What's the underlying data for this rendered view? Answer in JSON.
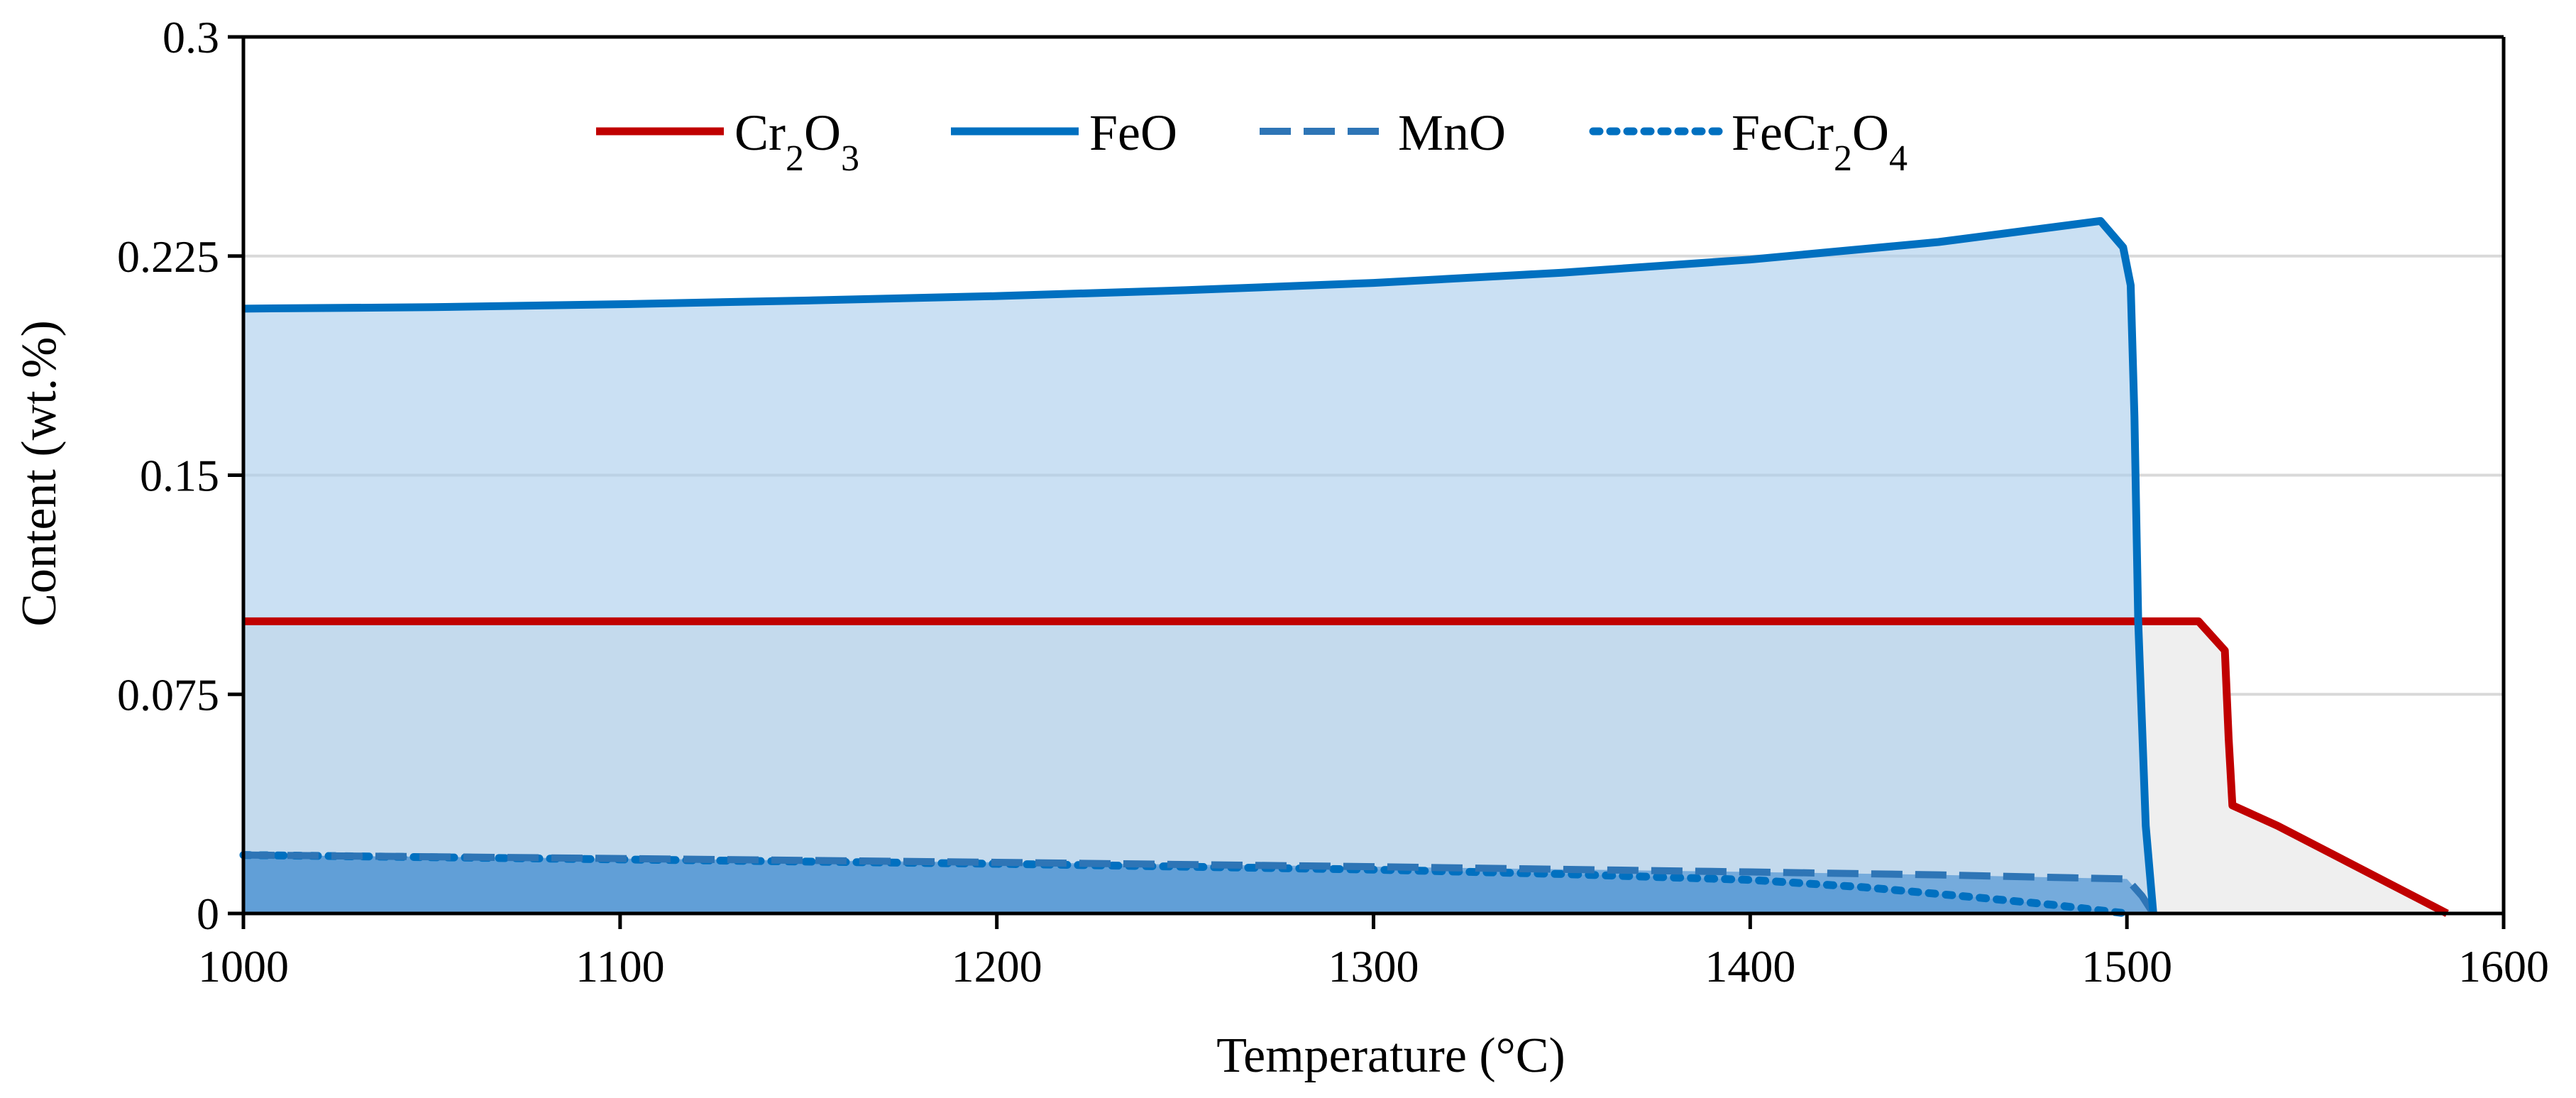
{
  "chart_data": {
    "type": "area",
    "title": "",
    "xlabel": "Temperature (°C)",
    "ylabel": "Content (wt.%)",
    "xlim": [
      1000,
      1600
    ],
    "ylim": [
      0,
      0.3
    ],
    "xticks": [
      1000,
      1100,
      1200,
      1300,
      1400,
      1500,
      1600
    ],
    "xtick_labels": [
      "1000",
      "1100",
      "1200",
      "1300",
      "1400",
      "1500",
      "1600"
    ],
    "yticks": [
      0,
      0.075,
      0.15,
      0.225,
      0.3
    ],
    "ytick_labels": [
      "0",
      "0.075",
      "0.15",
      "0.225",
      "0.3"
    ],
    "grid": "horizontal",
    "legend_position": "top-center",
    "series": [
      {
        "name": "Cr2O3",
        "label_parts": [
          {
            "t": "Cr"
          },
          {
            "t": "2",
            "sub": true
          },
          {
            "t": "O"
          },
          {
            "t": "3",
            "sub": true
          }
        ],
        "style": "solid",
        "color": "#c00000",
        "fill": "#efefef",
        "x": [
          1000,
          1519,
          1526,
          1527,
          1528,
          1540,
          1555,
          1570,
          1585
        ],
        "y": [
          0.1,
          0.1,
          0.09,
          0.06,
          0.037,
          0.03,
          0.02,
          0.01,
          0.0
        ]
      },
      {
        "name": "FeO",
        "label_parts": [
          {
            "t": "FeO"
          }
        ],
        "style": "solid",
        "color": "#0070c0",
        "fill": "#a9cdeb",
        "x": [
          1000,
          1050,
          1100,
          1150,
          1200,
          1250,
          1300,
          1350,
          1400,
          1450,
          1493,
          1499,
          1501,
          1502,
          1503,
          1505,
          1507
        ],
        "y": [
          0.207,
          0.2075,
          0.2085,
          0.2098,
          0.2113,
          0.2133,
          0.2158,
          0.2193,
          0.2238,
          0.2298,
          0.237,
          0.228,
          0.215,
          0.17,
          0.1,
          0.03,
          0.0
        ]
      },
      {
        "name": "MnO",
        "label_parts": [
          {
            "t": "MnO"
          }
        ],
        "style": "dashed",
        "color": "#2e75b6",
        "fill": "#5b9bd5",
        "x": [
          1000,
          1100,
          1200,
          1300,
          1400,
          1450,
          1500,
          1504,
          1507
        ],
        "y": [
          0.02,
          0.0188,
          0.0175,
          0.016,
          0.0142,
          0.0132,
          0.0118,
          0.006,
          0.0
        ]
      },
      {
        "name": "FeCr2O4",
        "label_parts": [
          {
            "t": "FeCr"
          },
          {
            "t": "2",
            "sub": true
          },
          {
            "t": "O"
          },
          {
            "t": "4",
            "sub": true
          }
        ],
        "style": "dotted",
        "color": "#0070c0",
        "fill": "#5b9bd5",
        "x": [
          1000,
          1100,
          1200,
          1300,
          1350,
          1400,
          1430,
          1460,
          1480,
          1500
        ],
        "y": [
          0.02,
          0.0185,
          0.017,
          0.015,
          0.0135,
          0.0115,
          0.009,
          0.0055,
          0.003,
          0.0
        ]
      }
    ]
  }
}
